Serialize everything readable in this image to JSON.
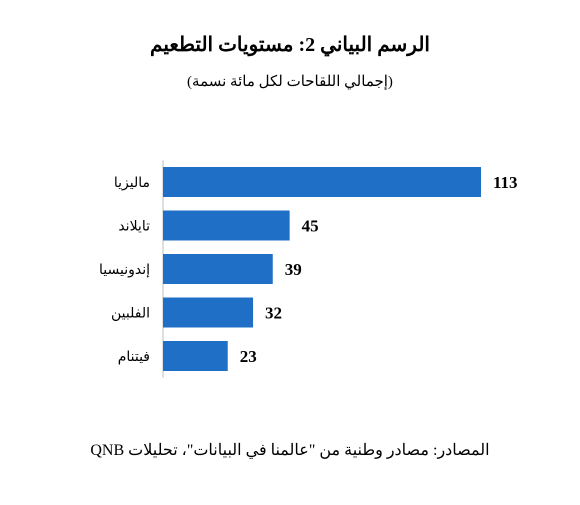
{
  "chart": {
    "title": "الرسم البياني 2: مستويات التطعيم",
    "subtitle": "(إجمالي اللقاحات لكل مائة نسمة)",
    "source": "المصادر: مصادر وطنية من \"عالمنا في البيانات\"، تحليلات QNB"
  },
  "chart_data": {
    "type": "bar",
    "orientation": "horizontal",
    "title": "الرسم البياني 2: مستويات التطعيم",
    "subtitle": "(إجمالي اللقاحات لكل مائة نسمة)",
    "categories": [
      "ماليزيا",
      "تايلاند",
      "إندونيسيا",
      "الفلبين",
      "فيتنام"
    ],
    "values": [
      113,
      45,
      39,
      32,
      23
    ],
    "data_labels": true,
    "bar_color": "#1f6fc7",
    "xlim": [
      0,
      113
    ],
    "grid": false,
    "legend": "none"
  }
}
